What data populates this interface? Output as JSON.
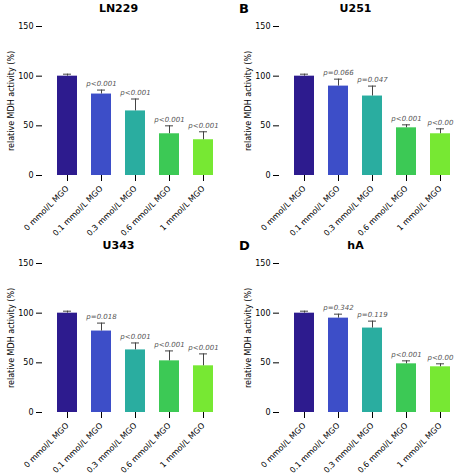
{
  "chart_data": [
    {
      "type": "bar",
      "title": "LN229",
      "categories": [
        "0 mmol/L MGO",
        "0.1 mmol/L MGO",
        "0.3 mmol/L MGO",
        "0.6 mmol/L MGO",
        "1 mmol/L MGO"
      ],
      "values": [
        100,
        82,
        65,
        42,
        36
      ],
      "errors": [
        2,
        4,
        12,
        8,
        8
      ],
      "annotations": [
        null,
        "p<0.001",
        "p<0.001",
        "p<0.001",
        "p<0.001"
      ],
      "colors": [
        "#2d1b8e",
        "#3d4ec8",
        "#2aada0",
        "#3cc955",
        "#77e833"
      ],
      "y_label": "relative MDH activity (%)",
      "ylim": [
        0,
        150
      ],
      "yticks": [
        0,
        50,
        100,
        150
      ],
      "grid": false
    },
    {
      "type": "bar",
      "title": "U251",
      "label": "B",
      "categories": [
        "0 mmol/L MGO",
        "0.1 mmol/L MGO",
        "0.3 mmol/L MGO",
        "0.6 mmol/L MGO",
        "1 mmol/L MGO"
      ],
      "values": [
        100,
        90,
        80,
        48,
        42
      ],
      "errors": [
        2,
        7,
        10,
        3,
        5
      ],
      "annotations": [
        null,
        "p=0.066",
        "p=0.047",
        "p<0.001",
        "p<0.00"
      ],
      "colors": [
        "#2d1b8e",
        "#3d4ec8",
        "#2aada0",
        "#3cc955",
        "#77e833"
      ],
      "y_label": "relative MDH activity (%)",
      "ylim": [
        0,
        150
      ],
      "yticks": [
        0,
        50,
        100,
        150
      ],
      "grid": false
    },
    {
      "type": "bar",
      "title": "U343",
      "categories": [
        "0 mmol/L MGO",
        "0.1 mmol/L MGO",
        "0.3 mmol/L MGO",
        "0.6 mmol/L MGO",
        "1 mmol/L MGO"
      ],
      "values": [
        100,
        82,
        63,
        52,
        47
      ],
      "errors": [
        2,
        8,
        7,
        10,
        12
      ],
      "annotations": [
        null,
        "p=0.018",
        "p<0.001",
        "p<0.001",
        "p<0.001"
      ],
      "colors": [
        "#2d1b8e",
        "#3d4ec8",
        "#2aada0",
        "#3cc955",
        "#77e833"
      ],
      "y_label": "relative MDH activity (%)",
      "ylim": [
        0,
        150
      ],
      "yticks": [
        0,
        50,
        100,
        150
      ],
      "grid": false
    },
    {
      "type": "bar",
      "title": "hA",
      "label": "D",
      "categories": [
        "0 mmol/L MGO",
        "0.1 mmol/L MGO",
        "0.3 mmol/L MGO",
        "0.6 mmol/L MGO",
        "1 mmol/L MGO"
      ],
      "values": [
        100,
        95,
        85,
        49,
        46
      ],
      "errors": [
        2,
        4,
        7,
        3,
        3
      ],
      "annotations": [
        null,
        "p=0.342",
        "p=0.119",
        "p<0.001",
        "p<0.00"
      ],
      "colors": [
        "#2d1b8e",
        "#3d4ec8",
        "#2aada0",
        "#3cc955",
        "#77e833"
      ],
      "y_label": "relative MDH activity (%)",
      "ylim": [
        0,
        150
      ],
      "yticks": [
        0,
        50,
        100,
        150
      ],
      "grid": false
    }
  ]
}
